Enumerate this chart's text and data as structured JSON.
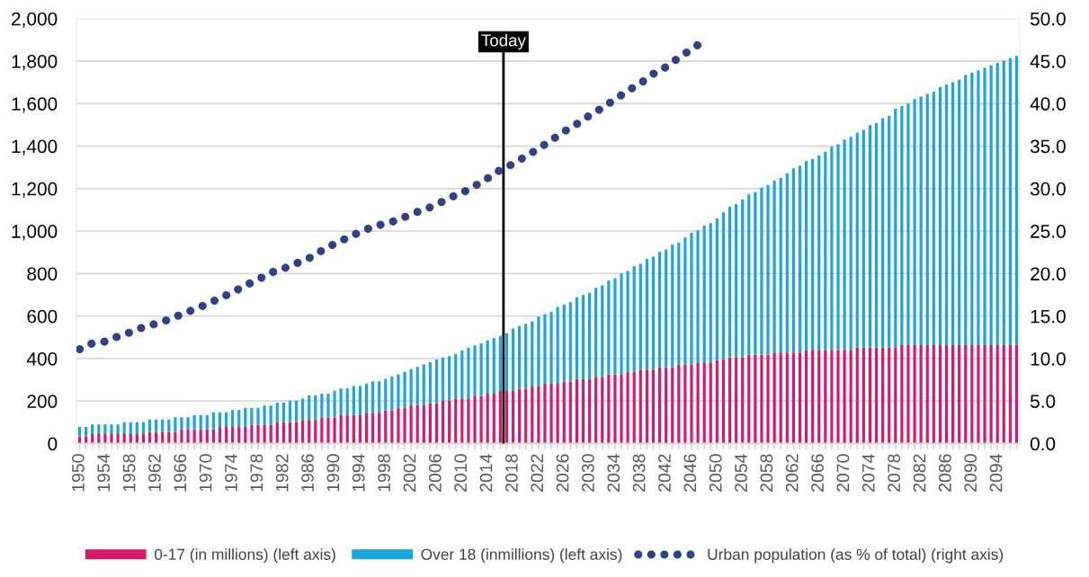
{
  "chart_data": {
    "type": "bar",
    "stacked": true,
    "x": [
      1950,
      1951,
      1952,
      1953,
      1954,
      1955,
      1956,
      1957,
      1958,
      1959,
      1960,
      1961,
      1962,
      1963,
      1964,
      1965,
      1966,
      1967,
      1968,
      1969,
      1970,
      1971,
      1972,
      1973,
      1974,
      1975,
      1976,
      1977,
      1978,
      1979,
      1980,
      1981,
      1982,
      1983,
      1984,
      1985,
      1986,
      1987,
      1988,
      1989,
      1990,
      1991,
      1992,
      1993,
      1994,
      1995,
      1996,
      1997,
      1998,
      1999,
      2000,
      2001,
      2002,
      2003,
      2004,
      2005,
      2006,
      2007,
      2008,
      2009,
      2010,
      2011,
      2012,
      2013,
      2014,
      2015,
      2016,
      2017,
      2018,
      2019,
      2020,
      2021,
      2022,
      2023,
      2024,
      2025,
      2026,
      2027,
      2028,
      2029,
      2030,
      2031,
      2032,
      2033,
      2034,
      2035,
      2036,
      2037,
      2038,
      2039,
      2040,
      2041,
      2042,
      2043,
      2044,
      2045,
      2046,
      2047,
      2048,
      2049,
      2050,
      2051,
      2052,
      2053,
      2054,
      2055,
      2056,
      2057,
      2058,
      2059,
      2060,
      2061,
      2062,
      2063,
      2064,
      2065,
      2066,
      2067,
      2068,
      2069,
      2070,
      2071,
      2072,
      2073,
      2074,
      2075,
      2076,
      2077,
      2078,
      2079,
      2080,
      2081,
      2082,
      2083,
      2084,
      2085,
      2086,
      2087,
      2088,
      2089,
      2090,
      2091,
      2092,
      2093,
      2094,
      2095,
      2096,
      2097
    ],
    "series": [
      {
        "name": "0-17 (in millions) (left axis)",
        "color": "#d6196b",
        "values": [
          34,
          34,
          44,
          44,
          44,
          44,
          44,
          44,
          44,
          44,
          44,
          55,
          55,
          55,
          55,
          55,
          68,
          68,
          68,
          68,
          68,
          68,
          78,
          78,
          78,
          78,
          78,
          89,
          89,
          89,
          89,
          102,
          102,
          102,
          102,
          111,
          111,
          111,
          123,
          123,
          123,
          134,
          134,
          134,
          134,
          145,
          145,
          145,
          157,
          157,
          168,
          168,
          181,
          181,
          181,
          190,
          190,
          202,
          202,
          213,
          213,
          213,
          224,
          224,
          235,
          235,
          247,
          247,
          247,
          258,
          258,
          269,
          269,
          281,
          281,
          281,
          292,
          292,
          305,
          305,
          305,
          314,
          314,
          326,
          326,
          326,
          337,
          337,
          348,
          348,
          348,
          359,
          359,
          359,
          371,
          371,
          371,
          382,
          382,
          382,
          393,
          397,
          406,
          406,
          406,
          419,
          419,
          419,
          419,
          428,
          428,
          428,
          428,
          428,
          441,
          441,
          441,
          441,
          441,
          441,
          441,
          441,
          452,
          452,
          452,
          452,
          452,
          452,
          452,
          463,
          463,
          463,
          463,
          463,
          463,
          463,
          463,
          463,
          463,
          463,
          463,
          463,
          463,
          463,
          463,
          463,
          463,
          463
        ]
      },
      {
        "name": "Over 18 (inmillions) (left axis)",
        "color": "#1aa5dc",
        "values": [
          44,
          44,
          46,
          46,
          46,
          46,
          46,
          56,
          56,
          56,
          56,
          58,
          58,
          58,
          58,
          69,
          56,
          56,
          66,
          66,
          66,
          79,
          69,
          69,
          80,
          80,
          90,
          79,
          79,
          90,
          90,
          90,
          90,
          100,
          100,
          102,
          115,
          115,
          112,
          112,
          125,
          125,
          125,
          137,
          137,
          137,
          148,
          148,
          148,
          159,
          158,
          169,
          169,
          180,
          191,
          193,
          205,
          203,
          209,
          209,
          225,
          238,
          238,
          248,
          250,
          261,
          260,
          272,
          294,
          295,
          306,
          306,
          329,
          328,
          339,
          362,
          362,
          373,
          383,
          394,
          405,
          419,
          430,
          441,
          452,
          475,
          475,
          497,
          498,
          520,
          532,
          543,
          554,
          577,
          576,
          599,
          621,
          622,
          644,
          655,
          667,
          691,
          709,
          720,
          742,
          754,
          764,
          786,
          798,
          810,
          822,
          844,
          867,
          879,
          888,
          899,
          915,
          933,
          956,
          968,
          990,
          1002,
          1012,
          1024,
          1046,
          1057,
          1079,
          1091,
          1124,
          1125,
          1137,
          1158,
          1170,
          1182,
          1193,
          1215,
          1227,
          1238,
          1249,
          1272,
          1282,
          1294,
          1306,
          1317,
          1328,
          1339,
          1351,
          1361
        ]
      },
      {
        "name": "Urban population (as % of total) (right axis)",
        "type": "line",
        "axis": "y2",
        "line_style": "dotted",
        "color": "#2d4388",
        "x": [
          1950,
          1952,
          1954,
          1956,
          1958,
          1960,
          1962,
          1964,
          1966,
          1968,
          1970,
          1972,
          1974,
          1976,
          1978,
          1980,
          1982,
          1984,
          1986,
          1988,
          1990,
          1992,
          1994,
          1996,
          1998,
          2000,
          2002,
          2004,
          2006,
          2008,
          2010,
          2012,
          2014,
          2016,
          2018,
          2020,
          2022,
          2024,
          2026,
          2028,
          2030,
          2032,
          2034,
          2036,
          2038,
          2040,
          2042,
          2044,
          2046,
          2048
        ],
        "values": [
          11.1,
          11.8,
          12.0,
          12.6,
          13.1,
          13.7,
          14.1,
          14.6,
          15.2,
          15.8,
          16.4,
          17.1,
          17.8,
          18.6,
          19.3,
          20.1,
          20.6,
          21.2,
          21.8,
          22.7,
          23.5,
          24.2,
          24.9,
          25.5,
          25.9,
          26.3,
          27.0,
          27.5,
          28.1,
          28.9,
          29.5,
          30.3,
          31.2,
          32.2,
          32.9,
          33.8,
          34.7,
          35.7,
          36.7,
          37.6,
          38.6,
          39.5,
          40.5,
          41.5,
          42.4,
          43.5,
          44.3,
          45.4,
          46.4,
          47.4
        ]
      }
    ],
    "xlim": [
      1949.5,
      2097.5
    ],
    "xticks": [
      1950,
      {
        "value": 1951,
        "label": null
      },
      {
        "value": 1952,
        "label": null
      },
      {
        "value": 1953,
        "label": null
      },
      1954,
      {
        "value": 1955,
        "label": null
      },
      {
        "value": 1956,
        "label": null
      },
      {
        "value": 1957,
        "label": null
      },
      1958,
      {
        "value": 1959,
        "label": null
      },
      {
        "value": 1960,
        "label": null
      },
      {
        "value": 1961,
        "label": null
      },
      1962,
      {
        "value": 1963,
        "label": null
      },
      {
        "value": 1964,
        "label": null
      },
      {
        "value": 1965,
        "label": null
      },
      1966,
      {
        "value": 1967,
        "label": null
      },
      {
        "value": 1968,
        "label": null
      },
      {
        "value": 1969,
        "label": null
      },
      1970,
      {
        "value": 1971,
        "label": null
      },
      {
        "value": 1972,
        "label": null
      },
      {
        "value": 1973,
        "label": null
      },
      1974,
      {
        "value": 1975,
        "label": null
      },
      {
        "value": 1976,
        "label": null
      },
      {
        "value": 1977,
        "label": null
      },
      1978,
      {
        "value": 1979,
        "label": null
      },
      {
        "value": 1980,
        "label": null
      },
      {
        "value": 1981,
        "label": null
      },
      1982,
      {
        "value": 1983,
        "label": null
      },
      {
        "value": 1984,
        "label": null
      },
      {
        "value": 1985,
        "label": null
      },
      1986,
      {
        "value": 1987,
        "label": null
      },
      {
        "value": 1988,
        "label": null
      },
      {
        "value": 1989,
        "label": null
      },
      1990,
      {
        "value": 1991,
        "label": null
      },
      {
        "value": 1992,
        "label": null
      },
      {
        "value": 1993,
        "label": null
      },
      1994,
      {
        "value": 1995,
        "label": null
      },
      {
        "value": 1996,
        "label": null
      },
      {
        "value": 1997,
        "label": null
      },
      1998,
      {
        "value": 1999,
        "label": null
      },
      {
        "value": 2000,
        "label": null
      },
      {
        "value": 2001,
        "label": null
      },
      2002,
      {
        "value": 2003,
        "label": null
      },
      {
        "value": 2004,
        "label": null
      },
      {
        "value": 2005,
        "label": null
      },
      2006,
      {
        "value": 2007,
        "label": null
      },
      {
        "value": 2008,
        "label": null
      },
      {
        "value": 2009,
        "label": null
      },
      2010,
      {
        "value": 2011,
        "label": null
      },
      {
        "value": 2012,
        "label": null
      },
      {
        "value": 2013,
        "label": null
      },
      2014,
      {
        "value": 2015,
        "label": null
      },
      {
        "value": 2016,
        "label": null
      },
      {
        "value": 2017,
        "label": null
      },
      2018,
      {
        "value": 2019,
        "label": null
      },
      {
        "value": 2020,
        "label": null
      },
      {
        "value": 2021,
        "label": null
      },
      2022,
      {
        "value": 2023,
        "label": null
      },
      {
        "value": 2024,
        "label": null
      },
      {
        "value": 2025,
        "label": null
      },
      2026,
      {
        "value": 2027,
        "label": null
      },
      {
        "value": 2028,
        "label": null
      },
      {
        "value": 2029,
        "label": null
      },
      2030,
      {
        "value": 2031,
        "label": null
      },
      {
        "value": 2032,
        "label": null
      },
      {
        "value": 2033,
        "label": null
      },
      2034,
      {
        "value": 2035,
        "label": null
      },
      {
        "value": 2036,
        "label": null
      },
      {
        "value": 2037,
        "label": null
      },
      2038,
      {
        "value": 2039,
        "label": null
      },
      {
        "value": 2040,
        "label": null
      },
      {
        "value": 2041,
        "label": null
      },
      2042,
      {
        "value": 2043,
        "label": null
      },
      {
        "value": 2044,
        "label": null
      },
      {
        "value": 2045,
        "label": null
      },
      2046,
      {
        "value": 2047,
        "label": null
      },
      {
        "value": 2048,
        "label": null
      },
      {
        "value": 2049,
        "label": null
      },
      2050,
      {
        "value": 2051,
        "label": null
      },
      {
        "value": 2052,
        "label": null
      },
      {
        "value": 2053,
        "label": null
      },
      2054,
      {
        "value": 2055,
        "label": null
      },
      {
        "value": 2056,
        "label": null
      },
      {
        "value": 2057,
        "label": null
      },
      2058,
      {
        "value": 2059,
        "label": null
      },
      {
        "value": 2060,
        "label": null
      },
      {
        "value": 2061,
        "label": null
      },
      2062,
      {
        "value": 2063,
        "label": null
      },
      {
        "value": 2064,
        "label": null
      },
      {
        "value": 2065,
        "label": null
      },
      2066,
      {
        "value": 2067,
        "label": null
      },
      {
        "value": 2068,
        "label": null
      },
      {
        "value": 2069,
        "label": null
      },
      2070,
      {
        "value": 2071,
        "label": null
      },
      {
        "value": 2072,
        "label": null
      },
      {
        "value": 2073,
        "label": null
      },
      2074,
      {
        "value": 2075,
        "label": null
      },
      {
        "value": 2076,
        "label": null
      },
      {
        "value": 2077,
        "label": null
      },
      2078,
      {
        "value": 2079,
        "label": null
      },
      {
        "value": 2080,
        "label": null
      },
      {
        "value": 2081,
        "label": null
      },
      2082,
      {
        "value": 2083,
        "label": null
      },
      {
        "value": 2084,
        "label": null
      },
      {
        "value": 2085,
        "label": null
      },
      2086,
      {
        "value": 2087,
        "label": null
      },
      {
        "value": 2088,
        "label": null
      },
      {
        "value": 2089,
        "label": null
      },
      2090,
      {
        "value": 2091,
        "label": null
      },
      {
        "value": 2092,
        "label": null
      },
      {
        "value": 2093,
        "label": null
      },
      2094,
      {
        "value": 2095,
        "label": null
      },
      {
        "value": 2096,
        "label": null
      },
      {
        "value": 2097,
        "label": null
      }
    ],
    "ylim": [
      0,
      2000
    ],
    "yticks": [
      0,
      200,
      400,
      600,
      800,
      {
        "value": 1000,
        "label": "1,000"
      },
      {
        "value": 1200,
        "label": "1,200"
      },
      {
        "value": 1400,
        "label": "1,400"
      },
      {
        "value": 1600,
        "label": "1,600"
      },
      {
        "value": 1800,
        "label": "1,800"
      },
      {
        "value": 2000,
        "label": "2,000"
      }
    ],
    "y2lim": [
      0,
      50
    ],
    "y2ticks": [
      {
        "value": 0,
        "label": "0.0"
      },
      {
        "value": 5,
        "label": "5.0"
      },
      {
        "value": 10,
        "label": "10.0"
      },
      {
        "value": 15,
        "label": "15.0"
      },
      {
        "value": 20,
        "label": "20.0"
      },
      {
        "value": 25,
        "label": "25.0"
      },
      {
        "value": 30,
        "label": "30.0"
      },
      {
        "value": 35,
        "label": "35.0"
      },
      {
        "value": 40,
        "label": "40.0"
      },
      {
        "value": 45,
        "label": "45.0"
      },
      {
        "value": 50,
        "label": "50.0"
      }
    ],
    "grid": "y",
    "legend": "bottom",
    "ref_lines": [
      {
        "axis": "x",
        "value": 2016.5,
        "label": "Today",
        "color": "#000000"
      }
    ]
  }
}
